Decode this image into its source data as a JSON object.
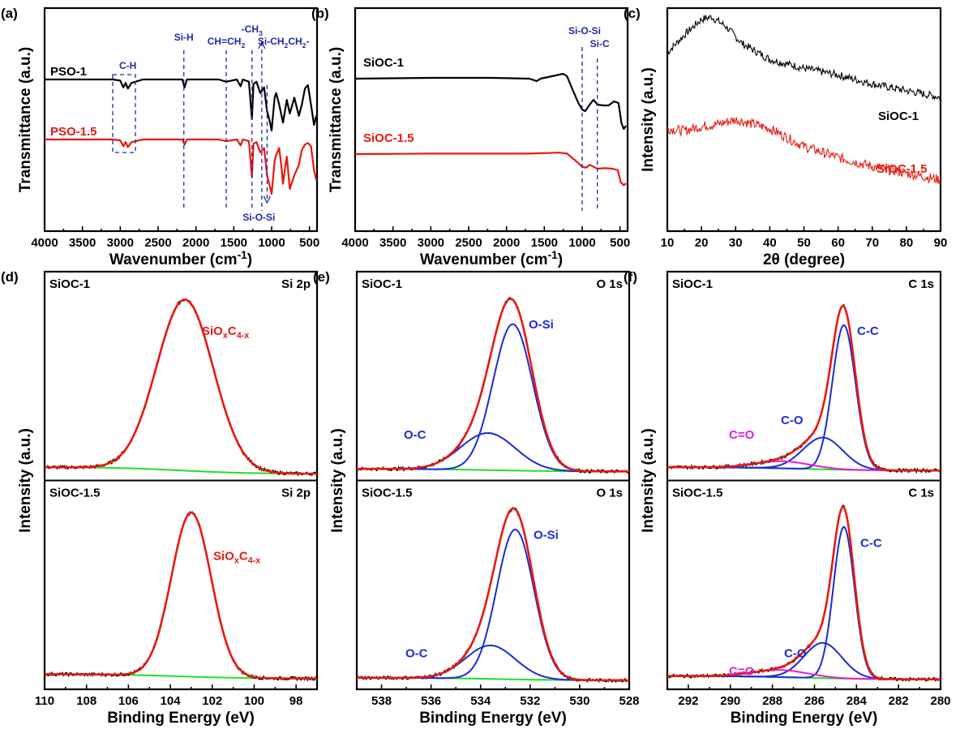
{
  "chart_data": [
    {
      "panel": "(a)",
      "type": "line",
      "xlabel": "Wavenumber (cm-1)",
      "ylabel": "Transmittance (a.u.)",
      "xlim": [
        4000,
        400
      ],
      "xticks": [
        4000,
        3500,
        3000,
        2500,
        2000,
        1500,
        1000,
        500
      ],
      "series": [
        {
          "name": "PSO-1",
          "color": "#000000",
          "points": [
            [
              4000,
              0.0
            ],
            [
              3100,
              0.0
            ],
            [
              3000,
              0.01
            ],
            [
              2960,
              0.07
            ],
            [
              2930,
              0.03
            ],
            [
              2900,
              0.08
            ],
            [
              2850,
              0.03
            ],
            [
              2700,
              0.0
            ],
            [
              2180,
              0.0
            ],
            [
              2150,
              0.07
            ],
            [
              2120,
              0.0
            ],
            [
              1700,
              0.0
            ],
            [
              1600,
              0.02
            ],
            [
              1460,
              0.0
            ],
            [
              1410,
              0.06
            ],
            [
              1380,
              0.0
            ],
            [
              1300,
              0.02
            ],
            [
              1260,
              0.35
            ],
            [
              1240,
              0.04
            ],
            [
              1200,
              0.02
            ],
            [
              1150,
              0.12
            ],
            [
              1100,
              0.07
            ],
            [
              1060,
              0.28
            ],
            [
              1020,
              0.38
            ],
            [
              1000,
              0.45
            ],
            [
              960,
              0.16
            ],
            [
              940,
              0.12
            ],
            [
              900,
              0.22
            ],
            [
              850,
              0.38
            ],
            [
              800,
              0.18
            ],
            [
              760,
              0.3
            ],
            [
              700,
              0.16
            ],
            [
              640,
              0.32
            ],
            [
              600,
              0.22
            ],
            [
              560,
              0.08
            ],
            [
              520,
              0.05
            ],
            [
              480,
              0.22
            ],
            [
              440,
              0.4
            ],
            [
              410,
              0.32
            ]
          ]
        },
        {
          "name": "PSO-1.5",
          "color": "#e8190f",
          "points": [
            [
              4000,
              0.0
            ],
            [
              3100,
              0.0
            ],
            [
              3000,
              0.01
            ],
            [
              2960,
              0.08
            ],
            [
              2930,
              0.03
            ],
            [
              2900,
              0.09
            ],
            [
              2850,
              0.03
            ],
            [
              2700,
              0.0
            ],
            [
              2180,
              0.0
            ],
            [
              2150,
              0.06
            ],
            [
              2120,
              0.0
            ],
            [
              1700,
              0.0
            ],
            [
              1600,
              0.02
            ],
            [
              1460,
              0.0
            ],
            [
              1410,
              0.07
            ],
            [
              1380,
              0.0
            ],
            [
              1300,
              0.02
            ],
            [
              1260,
              0.44
            ],
            [
              1240,
              0.05
            ],
            [
              1200,
              0.03
            ],
            [
              1150,
              0.15
            ],
            [
              1100,
              0.1
            ],
            [
              1060,
              0.42
            ],
            [
              1020,
              0.56
            ],
            [
              1000,
              0.64
            ],
            [
              960,
              0.25
            ],
            [
              940,
              0.18
            ],
            [
              900,
              0.1
            ],
            [
              870,
              0.32
            ],
            [
              850,
              0.52
            ],
            [
              820,
              0.32
            ],
            [
              800,
              0.2
            ],
            [
              760,
              0.58
            ],
            [
              700,
              0.42
            ],
            [
              640,
              0.3
            ],
            [
              600,
              0.12
            ],
            [
              560,
              0.06
            ],
            [
              520,
              0.04
            ],
            [
              480,
              0.08
            ],
            [
              440,
              0.36
            ],
            [
              410,
              0.48
            ]
          ]
        }
      ],
      "annotations": [
        {
          "text": "C-H",
          "x": 2900
        },
        {
          "text": "Si-H",
          "x": 2160
        },
        {
          "text": "CH=CH2",
          "x": 1600
        },
        {
          "text": "-CH3",
          "x": 1260
        },
        {
          "text": "Si-CH2CH2-",
          "x": 1130
        },
        {
          "text": "Si-O-Si",
          "x": 1060
        }
      ]
    },
    {
      "panel": "(b)",
      "type": "line",
      "xlabel": "Wavenumber (cm-1)",
      "ylabel": "Transmittance (a.u.)",
      "xlim": [
        4000,
        400
      ],
      "xticks": [
        4000,
        3500,
        3000,
        2500,
        2000,
        1500,
        1000,
        500
      ],
      "series": [
        {
          "name": "SiOC-1",
          "color": "#000000",
          "points": [
            [
              4000,
              0.0
            ],
            [
              3000,
              -0.01
            ],
            [
              2200,
              -0.01
            ],
            [
              1700,
              0.0
            ],
            [
              1600,
              0.03
            ],
            [
              1550,
              0.0
            ],
            [
              1300,
              -0.05
            ],
            [
              1250,
              -0.06
            ],
            [
              1200,
              -0.03
            ],
            [
              1120,
              0.15
            ],
            [
              1050,
              0.3
            ],
            [
              1000,
              0.38
            ],
            [
              960,
              0.4
            ],
            [
              900,
              0.32
            ],
            [
              850,
              0.26
            ],
            [
              800,
              0.32
            ],
            [
              720,
              0.33
            ],
            [
              650,
              0.33
            ],
            [
              580,
              0.28
            ],
            [
              520,
              0.3
            ],
            [
              480,
              0.55
            ],
            [
              450,
              0.62
            ],
            [
              420,
              0.58
            ]
          ]
        },
        {
          "name": "SiOC-1.5",
          "color": "#e8190f",
          "points": [
            [
              4000,
              0.0
            ],
            [
              3000,
              -0.01
            ],
            [
              2200,
              -0.01
            ],
            [
              1700,
              -0.01
            ],
            [
              1300,
              -0.03
            ],
            [
              1200,
              -0.01
            ],
            [
              1100,
              0.12
            ],
            [
              1000,
              0.26
            ],
            [
              950,
              0.28
            ],
            [
              900,
              0.22
            ],
            [
              800,
              0.3
            ],
            [
              700,
              0.29
            ],
            [
              600,
              0.3
            ],
            [
              530,
              0.33
            ],
            [
              490,
              0.58
            ],
            [
              450,
              0.64
            ],
            [
              420,
              0.6
            ]
          ]
        }
      ],
      "annotations": [
        {
          "text": "Si-O-Si",
          "x": 1000
        },
        {
          "text": "Si-C",
          "x": 800
        }
      ]
    },
    {
      "panel": "(c)",
      "type": "line",
      "xlabel": "2θ (degree)",
      "ylabel": "Intensity (a.u.)",
      "xlim": [
        10,
        90
      ],
      "xticks": [
        10,
        20,
        30,
        40,
        50,
        60,
        70,
        80,
        90
      ],
      "series": [
        {
          "name": "SiOC-1",
          "color": "#000000",
          "points": [
            [
              10,
              0.8
            ],
            [
              15,
              0.88
            ],
            [
              20,
              0.95
            ],
            [
              23,
              0.96
            ],
            [
              27,
              0.92
            ],
            [
              32,
              0.84
            ],
            [
              40,
              0.77
            ],
            [
              50,
              0.73
            ],
            [
              60,
              0.7
            ],
            [
              70,
              0.66
            ],
            [
              80,
              0.63
            ],
            [
              90,
              0.6
            ]
          ]
        },
        {
          "name": "SiOC-1.5",
          "color": "#e8190f",
          "points": [
            [
              10,
              0.46
            ],
            [
              15,
              0.45
            ],
            [
              20,
              0.47
            ],
            [
              25,
              0.48
            ],
            [
              30,
              0.5
            ],
            [
              35,
              0.48
            ],
            [
              40,
              0.46
            ],
            [
              45,
              0.42
            ],
            [
              50,
              0.38
            ],
            [
              60,
              0.33
            ],
            [
              70,
              0.29
            ],
            [
              80,
              0.26
            ],
            [
              90,
              0.23
            ]
          ]
        }
      ]
    },
    {
      "panel": "(d)",
      "type": "line",
      "stacked": true,
      "xlabel": "Binding Energy (eV)",
      "ylabel": "Intensity (a.u.)",
      "xlim": [
        110,
        97
      ],
      "xticks": [
        110,
        108,
        106,
        104,
        102,
        100,
        98
      ],
      "subplots": [
        {
          "sample": "SiOC-1",
          "region": "Si 2p",
          "background": [
            0.03,
            0.028,
            -0.008
          ],
          "peaks": [
            {
              "label": "SiOxC4-x",
              "center": 103.3,
              "height": 0.97,
              "sigma": 1.35
            }
          ]
        },
        {
          "sample": "SiOC-1.5",
          "region": "Si 2p",
          "background": [
            0.04,
            0.03,
            0.015
          ],
          "peaks": [
            {
              "label": "SiOxC4-x",
              "center": 103.0,
              "height": 0.93,
              "sigma": 0.95
            }
          ]
        }
      ]
    },
    {
      "panel": "(e)",
      "type": "line",
      "stacked": true,
      "xlabel": "Binding Energy (eV)",
      "ylabel": "Intensity (a.u.)",
      "xlim": [
        539,
        528
      ],
      "xticks": [
        538,
        536,
        534,
        532,
        530,
        528
      ],
      "subplots": [
        {
          "sample": "SiOC-1",
          "region": "O 1s",
          "background": [
            0.02,
            0.02,
            0.005
          ],
          "peaks": [
            {
              "label": "O-Si",
              "center": 532.7,
              "height": 0.83,
              "sigma": 0.8
            },
            {
              "label": "O-C",
              "center": 533.7,
              "height": 0.21,
              "sigma": 1.1
            }
          ]
        },
        {
          "sample": "SiOC-1.5",
          "region": "O 1s",
          "background": [
            0.02,
            0.02,
            0.005
          ],
          "peaks": [
            {
              "label": "O-Si",
              "center": 532.6,
              "height": 0.85,
              "sigma": 0.75
            },
            {
              "label": "O-C",
              "center": 533.6,
              "height": 0.19,
              "sigma": 1.0
            }
          ]
        }
      ]
    },
    {
      "panel": "(f)",
      "type": "line",
      "stacked": true,
      "xlabel": "Binding Energy (eV)",
      "ylabel": "Intensity (a.u.)",
      "xlim": [
        293,
        280
      ],
      "xticks": [
        292,
        290,
        288,
        286,
        284,
        282,
        280
      ],
      "subplots": [
        {
          "sample": "SiOC-1",
          "region": "C 1s",
          "background": [
            0.03,
            0.03,
            0.01
          ],
          "peaks": [
            {
              "label": "C-C",
              "center": 284.6,
              "height": 0.82,
              "sigma": 0.55,
              "color": "#1a2bd6"
            },
            {
              "label": "C-O",
              "center": 285.6,
              "height": 0.18,
              "sigma": 0.95,
              "color": "#1a2bd6"
            },
            {
              "label": "C=O",
              "center": 287.5,
              "height": 0.04,
              "sigma": 1.3,
              "color": "#e61ad8"
            }
          ]
        },
        {
          "sample": "SiOC-1.5",
          "region": "C 1s",
          "background": [
            0.03,
            0.03,
            0.01
          ],
          "peaks": [
            {
              "label": "C-C",
              "center": 284.6,
              "height": 0.86,
              "sigma": 0.5,
              "color": "#1a2bd6"
            },
            {
              "label": "C-O",
              "center": 285.6,
              "height": 0.2,
              "sigma": 0.9,
              "color": "#1a2bd6"
            },
            {
              "label": "C=O",
              "center": 287.6,
              "height": 0.04,
              "sigma": 1.3,
              "color": "#e61ad8"
            }
          ]
        }
      ]
    }
  ],
  "colors": {
    "sum_envelope": "#e8190f",
    "component": "#1a2bd6",
    "background_line": "#22e022",
    "raw": "#000000",
    "annotation": "#1f2aa0"
  }
}
